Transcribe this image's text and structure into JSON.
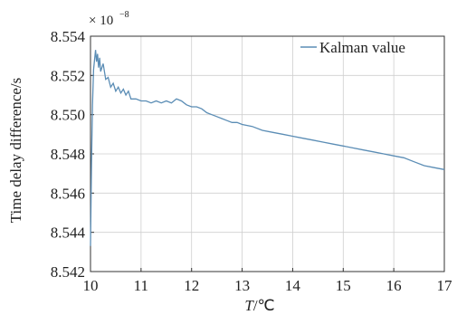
{
  "chart_data": {
    "type": "line",
    "title": "",
    "xlabel_italic": "T",
    "xlabel_unit": "/℃",
    "ylabel": "Time delay difference/s",
    "y_multiplier": "× 10",
    "y_multiplier_exp": "−8",
    "xlim": [
      10,
      17
    ],
    "ylim": [
      8.542,
      8.554
    ],
    "x_ticks": [
      "10",
      "11",
      "12",
      "13",
      "14",
      "15",
      "16",
      "17"
    ],
    "y_ticks": [
      "8.542",
      "8.544",
      "8.546",
      "8.548",
      "8.550",
      "8.552",
      "8.554"
    ],
    "grid": true,
    "legend_position": "top-right",
    "series": [
      {
        "name": "Kalman value",
        "color": "#5b8db5",
        "x": [
          10.0,
          10.02,
          10.04,
          10.06,
          10.08,
          10.1,
          10.12,
          10.14,
          10.16,
          10.18,
          10.2,
          10.25,
          10.3,
          10.35,
          10.4,
          10.45,
          10.5,
          10.55,
          10.6,
          10.65,
          10.7,
          10.75,
          10.8,
          10.9,
          11.0,
          11.1,
          11.2,
          11.3,
          11.4,
          11.5,
          11.6,
          11.7,
          11.8,
          11.9,
          12.0,
          12.1,
          12.2,
          12.3,
          12.4,
          12.5,
          12.6,
          12.7,
          12.8,
          12.9,
          13.0,
          13.2,
          13.4,
          13.6,
          13.8,
          14.0,
          14.2,
          14.4,
          14.6,
          14.8,
          15.0,
          15.2,
          15.4,
          15.6,
          15.8,
          16.0,
          16.2,
          16.4,
          16.6,
          16.8,
          17.0
        ],
        "values": [
          8.5433,
          8.5475,
          8.5505,
          8.5523,
          8.5528,
          8.5533,
          8.5527,
          8.5531,
          8.5524,
          8.5529,
          8.5522,
          8.5526,
          8.5518,
          8.5519,
          8.5514,
          8.5516,
          8.5512,
          8.5514,
          8.5511,
          8.5513,
          8.551,
          8.5512,
          8.5508,
          8.5508,
          8.5507,
          8.5507,
          8.5506,
          8.5507,
          8.5506,
          8.5507,
          8.5506,
          8.5508,
          8.5507,
          8.5505,
          8.5504,
          8.5504,
          8.5503,
          8.5501,
          8.55,
          8.5499,
          8.5498,
          8.5497,
          8.5496,
          8.5496,
          8.5495,
          8.5494,
          8.5492,
          8.5491,
          8.549,
          8.5489,
          8.5488,
          8.5487,
          8.5486,
          8.5485,
          8.5484,
          8.5483,
          8.5482,
          8.5481,
          8.548,
          8.5479,
          8.5478,
          8.5476,
          8.5474,
          8.5473,
          8.5472
        ]
      }
    ]
  }
}
